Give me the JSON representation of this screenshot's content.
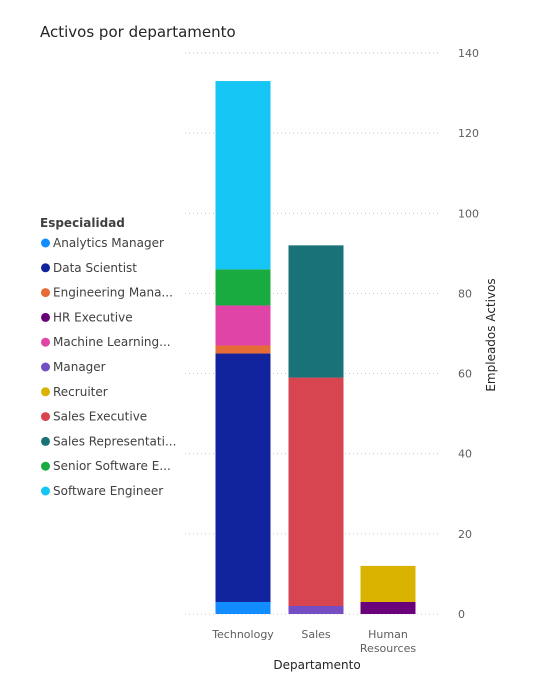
{
  "chart_data": {
    "type": "bar",
    "stacked": true,
    "title": "Activos por departamento",
    "xlabel": "Departamento",
    "ylabel": "Empleados Activos",
    "y_axis_side": "right",
    "ylim": [
      0,
      140
    ],
    "yticks": [
      "0",
      "20",
      "40",
      "60",
      "80",
      "100",
      "120",
      "140"
    ],
    "grid": true,
    "legend": {
      "title": "Especialidad",
      "position": "left"
    },
    "categories": [
      {
        "label": "Technology",
        "lines": [
          "Technology"
        ]
      },
      {
        "label": "Sales",
        "lines": [
          "Sales"
        ]
      },
      {
        "label": "Human Resources",
        "lines": [
          "Human",
          "Resources"
        ]
      }
    ],
    "series": [
      {
        "name": "Analytics Manager",
        "legend_label": "Analytics Manager",
        "color": "#118DFF",
        "values": [
          3,
          0,
          0
        ]
      },
      {
        "name": "Data Scientist",
        "legend_label": "Data Scientist",
        "color": "#12239E",
        "values": [
          62,
          0,
          0
        ]
      },
      {
        "name": "Engineering Manager",
        "legend_label": "Engineering Mana...",
        "color": "#E66C37",
        "values": [
          2,
          0,
          0
        ]
      },
      {
        "name": "HR Executive",
        "legend_label": "HR Executive",
        "color": "#6B007B",
        "values": [
          0,
          0,
          3
        ]
      },
      {
        "name": "Machine Learning Engineer",
        "legend_label": "Machine Learning...",
        "color": "#E044A7",
        "values": [
          10,
          0,
          0
        ]
      },
      {
        "name": "Manager",
        "legend_label": "Manager",
        "color": "#744EC2",
        "values": [
          0,
          2,
          0
        ]
      },
      {
        "name": "Recruiter",
        "legend_label": "Recruiter",
        "color": "#D9B300",
        "values": [
          0,
          0,
          9
        ]
      },
      {
        "name": "Sales Executive",
        "legend_label": "Sales Executive",
        "color": "#D64550",
        "values": [
          0,
          57,
          0
        ]
      },
      {
        "name": "Sales Representative",
        "legend_label": "Sales Representati...",
        "color": "#197278",
        "values": [
          0,
          33,
          0
        ]
      },
      {
        "name": "Senior Software Engineer",
        "legend_label": "Senior Software E...",
        "color": "#1AAB40",
        "values": [
          9,
          0,
          0
        ]
      },
      {
        "name": "Software Engineer",
        "legend_label": "Software Engineer",
        "color": "#15C6F4",
        "values": [
          47,
          0,
          0
        ]
      }
    ]
  }
}
